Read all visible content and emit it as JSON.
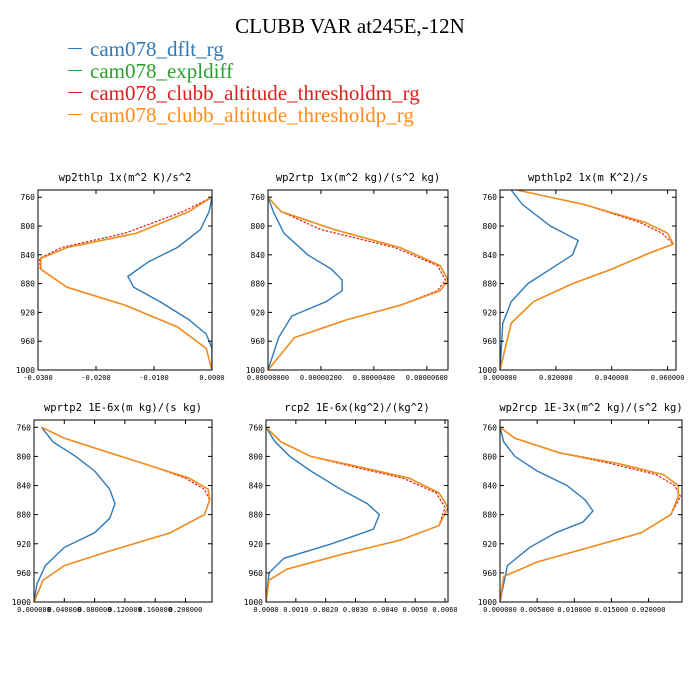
{
  "title": "CLUBB VAR at245E,-12N",
  "legend": [
    {
      "name": "cam078_dflt_rg",
      "color": "#2f7ab8"
    },
    {
      "name": "cam078_expldiff",
      "color": "#2ca02c"
    },
    {
      "name": "cam078_clubb_altitude_thresholdm_rg",
      "color": "#e0201b"
    },
    {
      "name": "cam078_clubb_altitude_thresholdp_rg",
      "color": "#ff8c1a"
    }
  ],
  "chart_data": [
    {
      "type": "line",
      "title": "wp2thlp  1x(m^2 K)/s^2",
      "xlim": [
        -0.03,
        0.0
      ],
      "ylim": [
        1000,
        750
      ],
      "yticks": [
        760,
        800,
        840,
        880,
        920,
        960,
        1000
      ],
      "xticks": [
        -0.03,
        -0.02,
        -0.01,
        0.0
      ],
      "xticklabels": [
        "-0.0300",
        "-0.0200",
        "-0.0100",
        "0.0000"
      ],
      "series": [
        {
          "name": "cam078_dflt_rg",
          "x": [
            0.0,
            -0.0005,
            -0.002,
            -0.006,
            -0.011,
            -0.0145,
            -0.0135,
            -0.009,
            -0.004,
            -0.001,
            0.0,
            0.0
          ],
          "y": [
            760,
            780,
            805,
            830,
            850,
            870,
            885,
            905,
            930,
            950,
            970,
            1000
          ]
        },
        {
          "name": "cam078_expldiff",
          "x": [
            0.0,
            -0.004,
            -0.013,
            -0.025,
            -0.0295,
            -0.0295,
            -0.025,
            -0.015,
            -0.006,
            -0.001,
            0.0
          ],
          "y": [
            760,
            780,
            810,
            830,
            845,
            860,
            885,
            910,
            940,
            970,
            1000
          ]
        },
        {
          "name": "cam078_clubb_altitude_thresholdm_rg",
          "x": [
            0.0,
            -0.005,
            -0.015,
            -0.026,
            -0.0297,
            -0.0296,
            -0.025,
            -0.015,
            -0.006,
            -0.001,
            0.0
          ],
          "y": [
            760,
            780,
            810,
            830,
            845,
            860,
            885,
            910,
            940,
            970,
            1000
          ]
        },
        {
          "name": "cam078_clubb_altitude_thresholdp_rg",
          "x": [
            0.0,
            -0.004,
            -0.013,
            -0.025,
            -0.0295,
            -0.0295,
            -0.025,
            -0.015,
            -0.006,
            -0.001,
            0.0
          ],
          "y": [
            760,
            780,
            810,
            830,
            845,
            860,
            885,
            910,
            940,
            970,
            1000
          ]
        }
      ]
    },
    {
      "type": "line",
      "title": "wp2rtp  1x(m^2 kg)/(s^2 kg)",
      "xlim": [
        0.0,
        6.8e-06
      ],
      "ylim": [
        1000,
        750
      ],
      "yticks": [
        760,
        800,
        840,
        880,
        920,
        960,
        1000
      ],
      "xticks": [
        0.0,
        2e-06,
        4e-06,
        6e-06
      ],
      "xticklabels": [
        "0.00000000",
        "0.00000200",
        "0.00000400",
        "0.00000600"
      ],
      "series": [
        {
          "name": "cam078_dflt_rg",
          "x": [
            0.0,
            2e-07,
            6e-07,
            1.5e-06,
            2.4e-06,
            2.8e-06,
            2.8e-06,
            2.2e-06,
            9e-07,
            4e-07,
            0.0
          ],
          "y": [
            760,
            780,
            810,
            840,
            860,
            875,
            890,
            905,
            925,
            955,
            1000
          ]
        },
        {
          "name": "cam078_expldiff",
          "x": [
            0.0,
            5e-07,
            2.5e-06,
            5e-06,
            6.5e-06,
            6.8e-06,
            6.5e-06,
            5e-06,
            3e-06,
            1e-06,
            0.0
          ],
          "y": [
            760,
            780,
            805,
            830,
            855,
            875,
            890,
            910,
            930,
            955,
            1000
          ]
        },
        {
          "name": "cam078_clubb_altitude_thresholdm_rg",
          "x": [
            0.0,
            5e-07,
            2e-06,
            4.8e-06,
            6.4e-06,
            6.7e-06,
            6.4e-06,
            5e-06,
            3e-06,
            1e-06,
            0.0
          ],
          "y": [
            760,
            780,
            805,
            830,
            855,
            875,
            890,
            910,
            930,
            955,
            1000
          ]
        },
        {
          "name": "cam078_clubb_altitude_thresholdp_rg",
          "x": [
            0.0,
            5e-07,
            2.5e-06,
            5e-06,
            6.5e-06,
            6.8e-06,
            6.5e-06,
            5e-06,
            3e-06,
            1e-06,
            0.0
          ],
          "y": [
            760,
            780,
            805,
            830,
            855,
            875,
            890,
            910,
            930,
            955,
            1000
          ]
        }
      ]
    },
    {
      "type": "line",
      "title": "wpthlp2  1x(m K^2)/s",
      "xlim": [
        0.0,
        0.063
      ],
      "ylim": [
        1000,
        750
      ],
      "yticks": [
        760,
        800,
        840,
        880,
        920,
        960,
        1000
      ],
      "xticks": [
        0.0,
        0.02,
        0.04,
        0.06
      ],
      "xticklabels": [
        "0.000000",
        "0.020000",
        "0.040000",
        "0.060000"
      ],
      "series": [
        {
          "name": "cam078_dflt_rg",
          "x": [
            0.004,
            0.008,
            0.018,
            0.028,
            0.026,
            0.018,
            0.01,
            0.004,
            0.001,
            0.0
          ],
          "y": [
            750,
            770,
            800,
            820,
            840,
            860,
            880,
            905,
            935,
            1000
          ]
        },
        {
          "name": "cam078_expldiff",
          "x": [
            0.006,
            0.03,
            0.052,
            0.06,
            0.062,
            0.052,
            0.04,
            0.026,
            0.012,
            0.004,
            0.0
          ],
          "y": [
            750,
            770,
            795,
            810,
            825,
            840,
            860,
            880,
            905,
            935,
            1000
          ]
        },
        {
          "name": "cam078_clubb_altitude_thresholdm_rg",
          "x": [
            0.006,
            0.03,
            0.05,
            0.058,
            0.062,
            0.052,
            0.04,
            0.026,
            0.012,
            0.004,
            0.0
          ],
          "y": [
            750,
            770,
            795,
            810,
            825,
            840,
            860,
            880,
            905,
            935,
            1000
          ]
        },
        {
          "name": "cam078_clubb_altitude_thresholdp_rg",
          "x": [
            0.006,
            0.03,
            0.052,
            0.06,
            0.062,
            0.052,
            0.04,
            0.026,
            0.012,
            0.004,
            0.0
          ],
          "y": [
            750,
            770,
            795,
            810,
            825,
            840,
            860,
            880,
            905,
            935,
            1000
          ]
        }
      ]
    },
    {
      "type": "line",
      "title": "wprtp2  1E-6x(m kg)/(s kg)",
      "xlim": [
        0.0,
        0.235
      ],
      "ylim": [
        1000,
        750
      ],
      "yticks": [
        760,
        800,
        840,
        880,
        920,
        960,
        1000
      ],
      "xticks": [
        0.0,
        0.04,
        0.08,
        0.12,
        0.16,
        0.2
      ],
      "xticklabels": [
        "0.000000",
        "0.040000",
        "0.080000",
        "0.120000",
        "0.160000",
        "0.200000"
      ],
      "series": [
        {
          "name": "cam078_dflt_rg",
          "x": [
            0.01,
            0.025,
            0.055,
            0.08,
            0.1,
            0.107,
            0.1,
            0.08,
            0.04,
            0.015,
            0.004,
            0.0
          ],
          "y": [
            760,
            780,
            800,
            820,
            845,
            865,
            885,
            905,
            925,
            950,
            975,
            1000
          ]
        },
        {
          "name": "cam078_expldiff",
          "x": [
            0.01,
            0.04,
            0.1,
            0.16,
            0.205,
            0.23,
            0.232,
            0.225,
            0.18,
            0.1,
            0.04,
            0.012,
            0.0
          ],
          "y": [
            760,
            775,
            795,
            815,
            830,
            845,
            860,
            880,
            905,
            930,
            950,
            970,
            1000
          ]
        },
        {
          "name": "cam078_clubb_altitude_thresholdm_rg",
          "x": [
            0.01,
            0.04,
            0.1,
            0.16,
            0.2,
            0.225,
            0.232,
            0.225,
            0.18,
            0.1,
            0.04,
            0.012,
            0.0
          ],
          "y": [
            760,
            775,
            795,
            815,
            830,
            845,
            860,
            880,
            905,
            930,
            950,
            970,
            1000
          ]
        },
        {
          "name": "cam078_clubb_altitude_thresholdp_rg",
          "x": [
            0.01,
            0.04,
            0.1,
            0.16,
            0.205,
            0.23,
            0.232,
            0.225,
            0.18,
            0.1,
            0.04,
            0.012,
            0.0
          ],
          "y": [
            760,
            775,
            795,
            815,
            830,
            845,
            860,
            880,
            905,
            930,
            950,
            970,
            1000
          ]
        }
      ]
    },
    {
      "type": "line",
      "title": "rcp2  1E-6x(kg^2)/(kg^2)",
      "xlim": [
        0.0,
        0.0061
      ],
      "ylim": [
        1000,
        750
      ],
      "yticks": [
        760,
        800,
        840,
        880,
        920,
        960,
        1000
      ],
      "xticks": [
        0.0,
        0.001,
        0.002,
        0.003,
        0.004,
        0.005,
        0.006
      ],
      "xticklabels": [
        "0.0000",
        "0.0010",
        "0.0020",
        "0.0030",
        "0.0040",
        "0.0050",
        "0.0060"
      ],
      "series": [
        {
          "name": "cam078_dflt_rg",
          "x": [
            0.0,
            0.0003,
            0.0008,
            0.0015,
            0.0025,
            0.0034,
            0.0038,
            0.0036,
            0.0022,
            0.0006,
            0.0001,
            0.0
          ],
          "y": [
            760,
            780,
            800,
            820,
            845,
            865,
            880,
            900,
            920,
            940,
            960,
            1000
          ]
        },
        {
          "name": "cam078_expldiff",
          "x": [
            0.0,
            0.0005,
            0.0015,
            0.0032,
            0.0048,
            0.0058,
            0.0061,
            0.0058,
            0.0045,
            0.0025,
            0.0007,
            0.0001,
            0.0
          ],
          "y": [
            760,
            780,
            800,
            815,
            830,
            850,
            870,
            895,
            915,
            935,
            955,
            970,
            1000
          ]
        },
        {
          "name": "cam078_clubb_altitude_thresholdm_rg",
          "x": [
            0.0,
            0.0005,
            0.0015,
            0.003,
            0.0046,
            0.0057,
            0.006,
            0.0058,
            0.0045,
            0.0025,
            0.0007,
            0.0001,
            0.0
          ],
          "y": [
            760,
            780,
            800,
            815,
            830,
            850,
            870,
            895,
            915,
            935,
            955,
            970,
            1000
          ]
        },
        {
          "name": "cam078_clubb_altitude_thresholdp_rg",
          "x": [
            0.0,
            0.0005,
            0.0015,
            0.0032,
            0.0048,
            0.0058,
            0.0061,
            0.0058,
            0.0045,
            0.0025,
            0.0007,
            0.0001,
            0.0
          ],
          "y": [
            760,
            780,
            800,
            815,
            830,
            850,
            870,
            895,
            915,
            935,
            955,
            970,
            1000
          ]
        }
      ]
    },
    {
      "type": "line",
      "title": "wp2rcp  1E-3x(m^2 kg)/(s^2 kg)",
      "xlim": [
        0.0,
        0.0245
      ],
      "ylim": [
        1000,
        750
      ],
      "yticks": [
        760,
        800,
        840,
        880,
        920,
        960,
        1000
      ],
      "xticks": [
        0.0,
        0.005,
        0.01,
        0.015,
        0.02
      ],
      "xticklabels": [
        "0.000000",
        "0.005000",
        "0.010000",
        "0.015000",
        "0.020000"
      ],
      "series": [
        {
          "name": "cam078_dflt_rg",
          "x": [
            0.0,
            0.0005,
            0.002,
            0.005,
            0.009,
            0.0115,
            0.0125,
            0.0112,
            0.0075,
            0.004,
            0.001,
            0.0
          ],
          "y": [
            760,
            780,
            800,
            820,
            840,
            860,
            875,
            890,
            905,
            925,
            950,
            1000
          ]
        },
        {
          "name": "cam078_expldiff",
          "x": [
            0.0,
            0.002,
            0.008,
            0.016,
            0.022,
            0.024,
            0.024,
            0.023,
            0.019,
            0.012,
            0.005,
            0.0005,
            0.0
          ],
          "y": [
            760,
            775,
            795,
            810,
            825,
            840,
            855,
            880,
            905,
            925,
            945,
            965,
            1000
          ]
        },
        {
          "name": "cam078_clubb_altitude_thresholdm_rg",
          "x": [
            0.0,
            0.002,
            0.008,
            0.015,
            0.021,
            0.0235,
            0.0243,
            0.023,
            0.019,
            0.012,
            0.005,
            0.0005,
            0.0
          ],
          "y": [
            760,
            775,
            795,
            810,
            825,
            840,
            855,
            880,
            905,
            925,
            945,
            965,
            1000
          ]
        },
        {
          "name": "cam078_clubb_altitude_thresholdp_rg",
          "x": [
            0.0,
            0.002,
            0.008,
            0.016,
            0.022,
            0.024,
            0.024,
            0.023,
            0.019,
            0.012,
            0.005,
            0.0005,
            0.0
          ],
          "y": [
            760,
            775,
            795,
            810,
            825,
            840,
            855,
            880,
            905,
            925,
            945,
            965,
            1000
          ]
        }
      ]
    }
  ]
}
